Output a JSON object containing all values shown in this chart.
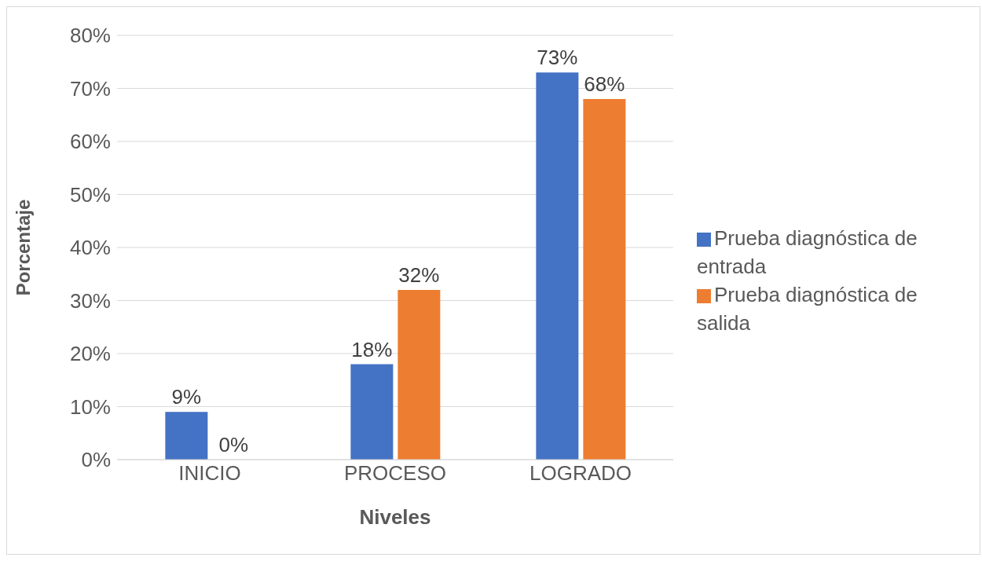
{
  "chart_data": {
    "type": "bar",
    "xlabel": "Niveles",
    "ylabel": "Porcentaje",
    "categories": [
      "INICIO",
      "PROCESO",
      "LOGRADO"
    ],
    "series": [
      {
        "name": "Prueba diagnóstica de entrada",
        "color": "#4472c4",
        "values": [
          9,
          18,
          73
        ],
        "value_labels": [
          "9%",
          "18%",
          "73%"
        ]
      },
      {
        "name": "Prueba diagnóstica de salida",
        "color": "#ed7d31",
        "values": [
          0,
          32,
          68
        ],
        "value_labels": [
          "0%",
          "32%",
          "68%"
        ]
      }
    ],
    "ylim": [
      0,
      80
    ],
    "yticks": [
      {
        "value": 0,
        "label": "0%"
      },
      {
        "value": 10,
        "label": "10%"
      },
      {
        "value": 20,
        "label": "20%"
      },
      {
        "value": 30,
        "label": "30%"
      },
      {
        "value": 40,
        "label": "40%"
      },
      {
        "value": 50,
        "label": "50%"
      },
      {
        "value": 60,
        "label": "60%"
      },
      {
        "value": 70,
        "label": "70%"
      },
      {
        "value": 80,
        "label": "80%"
      }
    ],
    "grid": "y",
    "legend": "right"
  }
}
